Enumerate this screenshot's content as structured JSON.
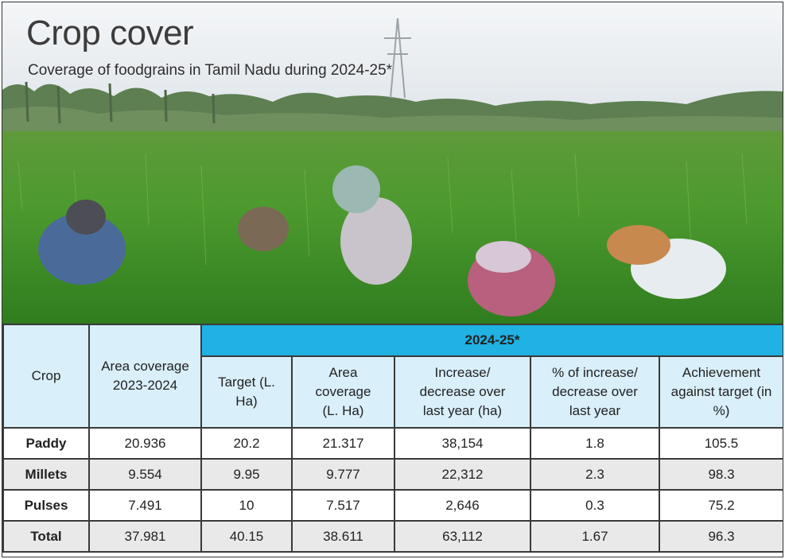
{
  "header": {
    "title": "Crop cover",
    "subtitle": "Coverage of foodgrains in Tamil Nadu during 2024-25*"
  },
  "colors": {
    "band": "#1fb2e3",
    "header_bg": "#d9effa",
    "alt_row": "#e9e9e9"
  },
  "chart_data": {
    "type": "table",
    "title": "Crop cover",
    "subtitle": "Coverage of foodgrains in Tamil Nadu during 2024-25*",
    "group_header": "2024-25*",
    "columns": [
      "Crop",
      "Area coverage 2023-2024",
      "Target (L. Ha)",
      "Area coverage (L. Ha)",
      "Increase/ decrease over last year (ha)",
      "% of increase/ decrease over last year",
      "Achievement against target (in %)"
    ],
    "rows": [
      [
        "Paddy",
        "20.936",
        "20.2",
        "21.317",
        "38,154",
        "1.8",
        "105.5"
      ],
      [
        "Millets",
        "9.554",
        "9.95",
        "9.777",
        "22,312",
        "2.3",
        "98.3"
      ],
      [
        "Pulses",
        "7.491",
        "10",
        "7.517",
        "2,646",
        "0.3",
        "75.2"
      ],
      [
        "Total",
        "37.981",
        "40.15",
        "38.611",
        "63,112",
        "1.67",
        "96.3"
      ]
    ]
  }
}
